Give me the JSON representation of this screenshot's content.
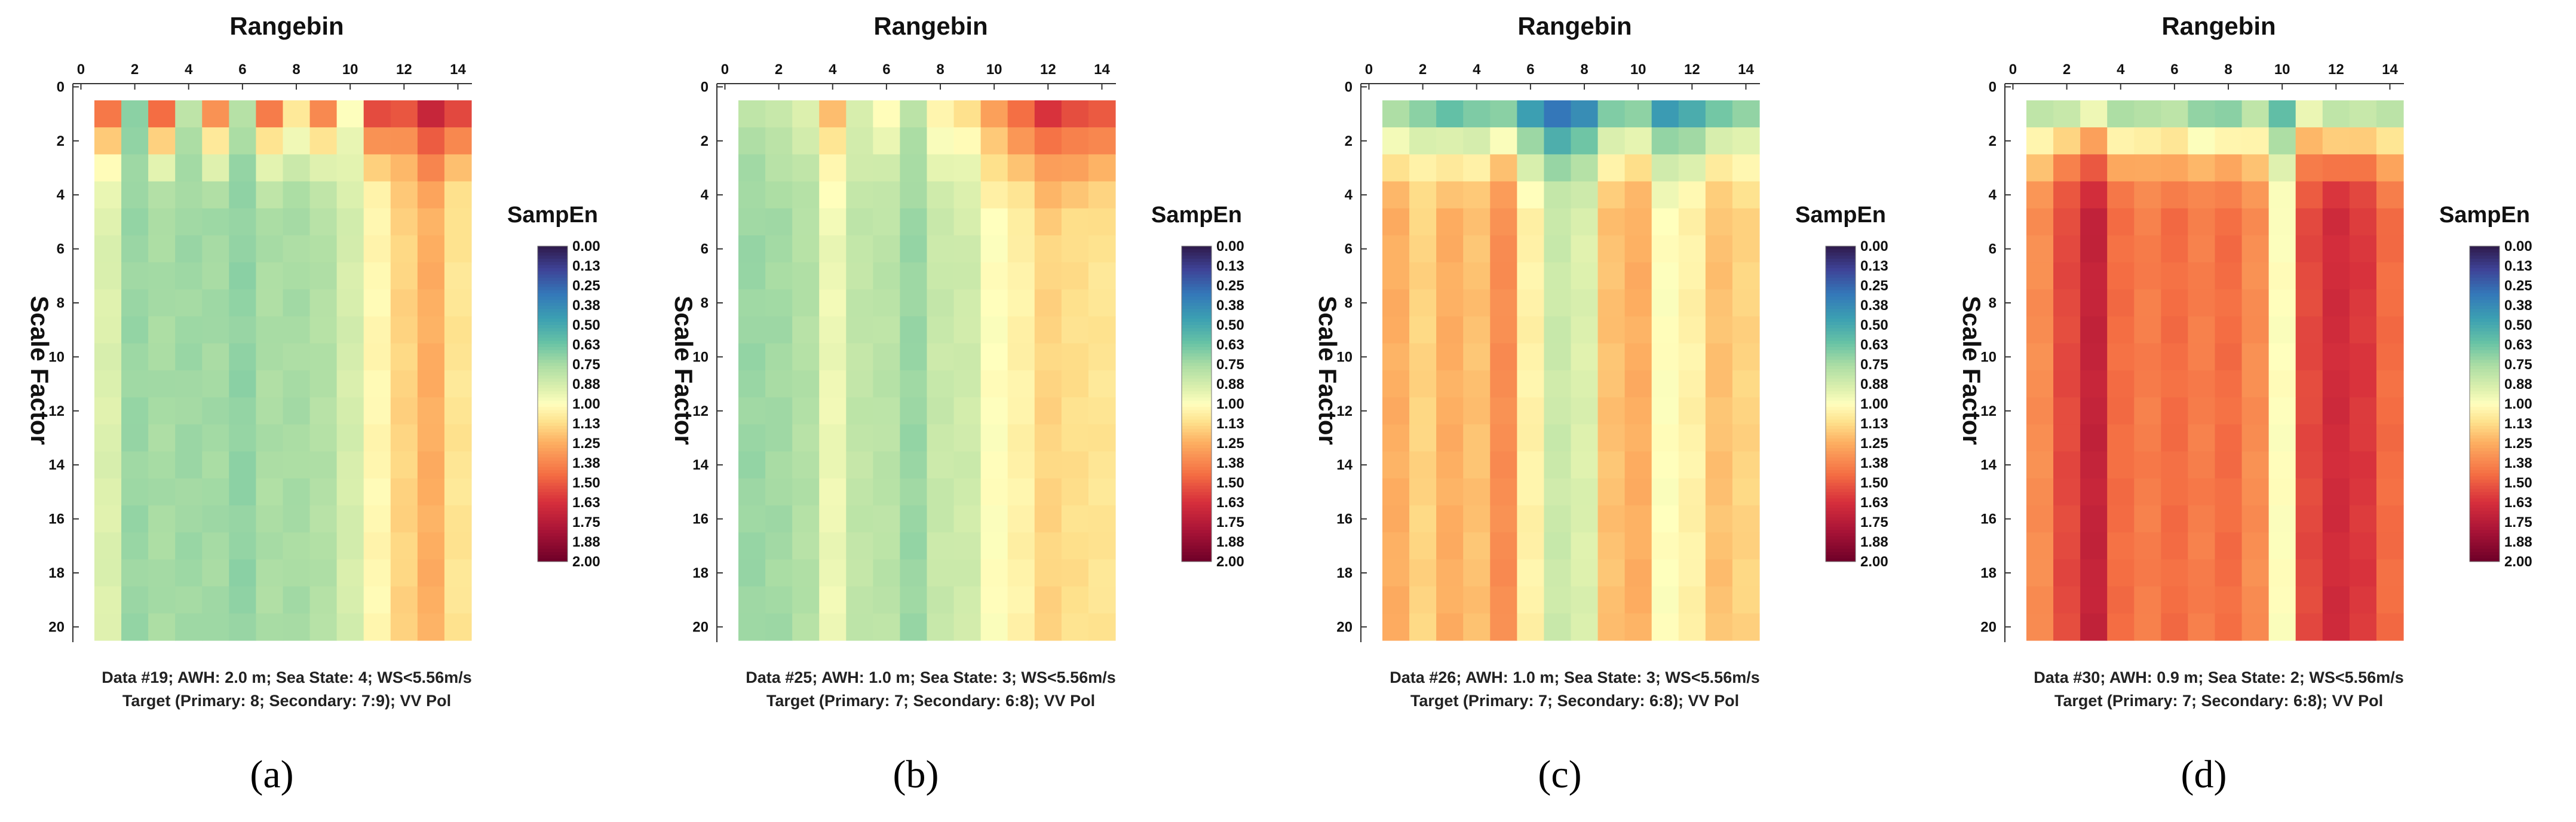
{
  "chart_data": [
    {
      "type": "heatmap",
      "panel_label": "(a)",
      "title": "",
      "xlabel": "Rangebin",
      "ylabel": "Scale Factor",
      "x_ticks": [
        "0",
        "2",
        "4",
        "6",
        "8",
        "10",
        "12",
        "14"
      ],
      "y_ticks": [
        "0",
        "2",
        "4",
        "6",
        "8",
        "10",
        "12",
        "14",
        "16",
        "18",
        "20"
      ],
      "xlim": [
        0,
        15
      ],
      "ylim": [
        0,
        21
      ],
      "colorbar": {
        "title": "SampEn",
        "ticks": [
          "0.00",
          "0.13",
          "0.25",
          "0.38",
          "0.50",
          "0.63",
          "0.75",
          "0.88",
          "1.00",
          "1.13",
          "1.25",
          "1.38",
          "1.50",
          "1.63",
          "1.75",
          "1.88",
          "2.00"
        ],
        "range": [
          0,
          2
        ]
      },
      "caption_line1": "Data #19; AWH: 2.0 m; Sea State: 4; WS<5.56m/s",
      "caption_line2": "Target (Primary: 8; Secondary: 7:9); VV Pol",
      "column_base": [
        1.4,
        0.7,
        1.45,
        0.8,
        1.35,
        0.78,
        1.4,
        1.1,
        1.35,
        1.0,
        1.55,
        1.5,
        1.7,
        1.55
      ],
      "column_plateau": [
        0.9,
        0.72,
        0.75,
        0.73,
        0.74,
        0.7,
        0.76,
        0.75,
        0.78,
        0.88,
        1.03,
        1.15,
        1.25,
        1.1
      ],
      "decay_rows": 4
    },
    {
      "type": "heatmap",
      "panel_label": "(b)",
      "title": "",
      "xlabel": "Rangebin",
      "ylabel": "Scale Factor",
      "x_ticks": [
        "0",
        "2",
        "4",
        "6",
        "8",
        "10",
        "12",
        "14"
      ],
      "y_ticks": [
        "0",
        "2",
        "4",
        "6",
        "8",
        "10",
        "12",
        "14",
        "16",
        "18",
        "20"
      ],
      "xlim": [
        0,
        15
      ],
      "ylim": [
        0,
        21
      ],
      "colorbar": {
        "title": "SampEn",
        "ticks": [
          "0.00",
          "0.13",
          "0.25",
          "0.38",
          "0.50",
          "0.63",
          "0.75",
          "0.88",
          "1.00",
          "1.13",
          "1.25",
          "1.38",
          "1.50",
          "1.63",
          "1.75",
          "1.88",
          "2.00"
        ],
        "range": [
          0,
          2
        ]
      },
      "caption_line1": "Data #25; AWH: 1.0 m; Sea State: 3; WS<5.56m/s",
      "caption_line2": "Target (Primary: 7; Secondary: 6:8); VV Pol",
      "column_base": [
        0.8,
        0.85,
        0.9,
        1.2,
        0.9,
        1.0,
        0.8,
        1.05,
        1.1,
        1.3,
        1.45,
        1.6,
        1.55,
        1.5
      ],
      "column_plateau": [
        0.72,
        0.74,
        0.78,
        0.95,
        0.82,
        0.8,
        0.72,
        0.84,
        0.86,
        1.0,
        1.05,
        1.15,
        1.12,
        1.1
      ],
      "decay_rows": 5
    },
    {
      "type": "heatmap",
      "panel_label": "(c)",
      "title": "",
      "xlabel": "Rangebin",
      "ylabel": "Scale Factor",
      "x_ticks": [
        "0",
        "2",
        "4",
        "6",
        "8",
        "10",
        "12",
        "14"
      ],
      "y_ticks": [
        "0",
        "2",
        "4",
        "6",
        "8",
        "10",
        "12",
        "14",
        "16",
        "18",
        "20"
      ],
      "xlim": [
        0,
        15
      ],
      "ylim": [
        0,
        21
      ],
      "colorbar": {
        "title": "SampEn",
        "ticks": [
          "0.00",
          "0.13",
          "0.25",
          "0.38",
          "0.50",
          "0.63",
          "0.75",
          "0.88",
          "1.00",
          "1.13",
          "1.25",
          "1.38",
          "1.50",
          "1.63",
          "1.75",
          "1.88",
          "2.00"
        ],
        "range": [
          0,
          2
        ]
      },
      "caption_line1": "Data #26; AWH: 1.0 m; Sea State: 3; WS<5.56m/s",
      "caption_line2": "Target (Primary: 7; Secondary: 6:8); VV Pol",
      "column_base": [
        0.75,
        0.7,
        0.6,
        0.65,
        0.7,
        0.45,
        0.3,
        0.4,
        0.65,
        0.7,
        0.45,
        0.5,
        0.65,
        0.7
      ],
      "column_plateau": [
        1.25,
        1.15,
        1.25,
        1.2,
        1.35,
        1.05,
        0.85,
        0.9,
        1.2,
        1.25,
        1.0,
        1.05,
        1.2,
        1.15
      ],
      "decay_rows": 4
    },
    {
      "type": "heatmap",
      "panel_label": "(d)",
      "title": "",
      "xlabel": "Rangebin",
      "ylabel": "Scale Factor",
      "x_ticks": [
        "0",
        "2",
        "4",
        "6",
        "8",
        "10",
        "12",
        "14"
      ],
      "y_ticks": [
        "0",
        "2",
        "4",
        "6",
        "8",
        "10",
        "12",
        "14",
        "16",
        "18",
        "20"
      ],
      "xlim": [
        0,
        15
      ],
      "ylim": [
        0,
        21
      ],
      "colorbar": {
        "title": "SampEn",
        "ticks": [
          "0.00",
          "0.13",
          "0.25",
          "0.38",
          "0.50",
          "0.63",
          "0.75",
          "0.88",
          "1.00",
          "1.13",
          "1.25",
          "1.38",
          "1.50",
          "1.63",
          "1.75",
          "1.88",
          "2.00"
        ],
        "range": [
          0,
          2
        ]
      },
      "caption_line1": "Data #30; AWH: 0.9 m; Sea State: 2; WS<5.56m/s",
      "caption_line2": "Target (Primary: 7; Secondary: 6:8); VV Pol",
      "column_base": [
        0.8,
        0.85,
        0.95,
        0.75,
        0.8,
        0.8,
        0.7,
        0.7,
        0.8,
        0.6,
        0.95,
        0.8,
        0.85,
        0.8
      ],
      "column_plateau": [
        1.35,
        1.55,
        1.7,
        1.45,
        1.4,
        1.45,
        1.4,
        1.45,
        1.35,
        1.0,
        1.55,
        1.65,
        1.6,
        1.45
      ],
      "decay_rows": 4
    }
  ]
}
